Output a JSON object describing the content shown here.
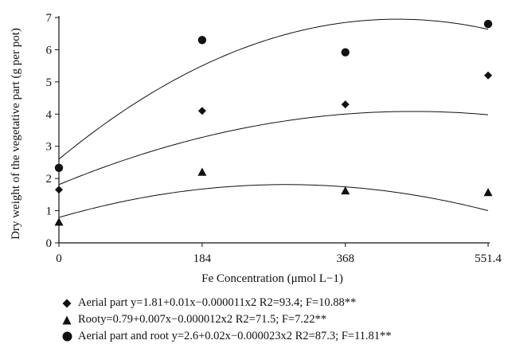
{
  "chart_data": {
    "type": "scatter",
    "xlabel": "Fe Concentration (μmol L−1)",
    "ylabel": "Dry weight of the vegetative part (g per pot)",
    "xlim": [
      0,
      551.4
    ],
    "ylim": [
      0,
      7
    ],
    "x_ticks": [
      "0",
      "184",
      "368",
      "551.4"
    ],
    "y_ticks": [
      "0",
      "1",
      "2",
      "3",
      "4",
      "5",
      "6",
      "7"
    ],
    "grid": false,
    "legend_position": "bottom",
    "series": [
      {
        "name": "Aerial part y=1.81+0.01x−0.000011x2 R2=93.4; F=10.88**",
        "marker": "diamond",
        "x": [
          0,
          184,
          368,
          551.4
        ],
        "y": [
          1.65,
          4.1,
          4.3,
          5.2
        ],
        "fit": {
          "a": 1.81,
          "b": 0.01,
          "c": -1.1e-05
        }
      },
      {
        "name": "Rooty=0.79+0.007x−0.000012x2 R2=71.5; F=7.22**",
        "marker": "triangle",
        "x": [
          0,
          184,
          368,
          551.4
        ],
        "y": [
          0.65,
          2.2,
          1.62,
          1.57
        ],
        "fit": {
          "a": 0.79,
          "b": 0.007,
          "c": -1.2e-05
        }
      },
      {
        "name": "Aerial part and root y=2.6+0.02x−0.000023x2 R2=87.3; F=11.81**",
        "marker": "circle",
        "x": [
          0,
          184,
          368,
          551.4
        ],
        "y": [
          2.33,
          6.3,
          5.92,
          6.8
        ],
        "fit": {
          "a": 2.6,
          "b": 0.02,
          "c": -2.3e-05
        }
      }
    ]
  }
}
